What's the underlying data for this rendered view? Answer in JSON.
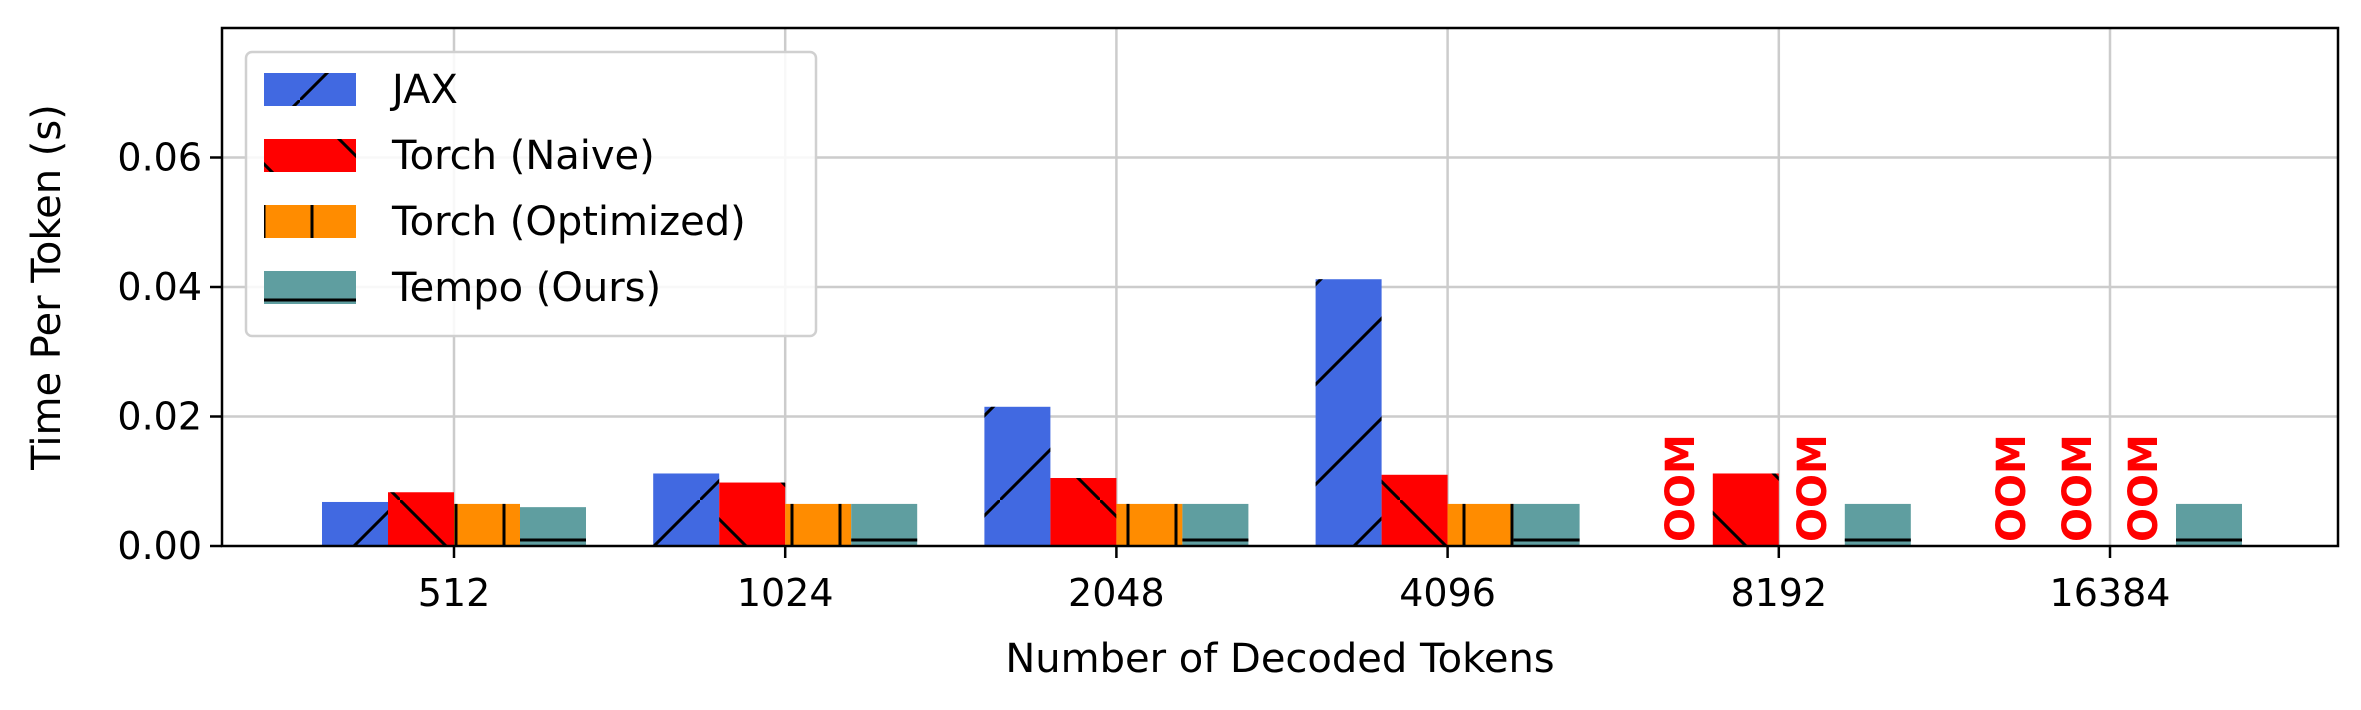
{
  "chart_data": {
    "type": "bar",
    "xlabel": "Number of Decoded Tokens",
    "ylabel": "Time Per Token (s)",
    "ylim": [
      0,
      0.08
    ],
    "yticks": [
      "0.00",
      "0.02",
      "0.04",
      "0.06"
    ],
    "ytick_values": [
      0,
      0.02,
      0.04,
      0.06
    ],
    "grid": true,
    "legend_position": "top-left",
    "categories": [
      "512",
      "1024",
      "2048",
      "4096",
      "8192",
      "16384"
    ],
    "oom_text": "OOM",
    "series": [
      {
        "name": "JAX",
        "color": "#4169e1",
        "hatch": "/",
        "values": [
          0.0068,
          0.0112,
          0.0215,
          0.0412,
          null,
          null
        ]
      },
      {
        "name": "Torch (Naive)",
        "color": "#ff0000",
        "hatch": "\\",
        "values": [
          0.0083,
          0.0098,
          0.0105,
          0.011,
          0.0112,
          null
        ]
      },
      {
        "name": "Torch (Optimized)",
        "color": "#ff8c00",
        "hatch": "|",
        "values": [
          0.0065,
          0.0065,
          0.0065,
          0.0065,
          null,
          null
        ]
      },
      {
        "name": "Tempo (Ours)",
        "color": "#5f9ea0",
        "hatch": "-",
        "values": [
          0.006,
          0.0065,
          0.0065,
          0.0065,
          0.0065,
          0.0065
        ]
      }
    ]
  }
}
